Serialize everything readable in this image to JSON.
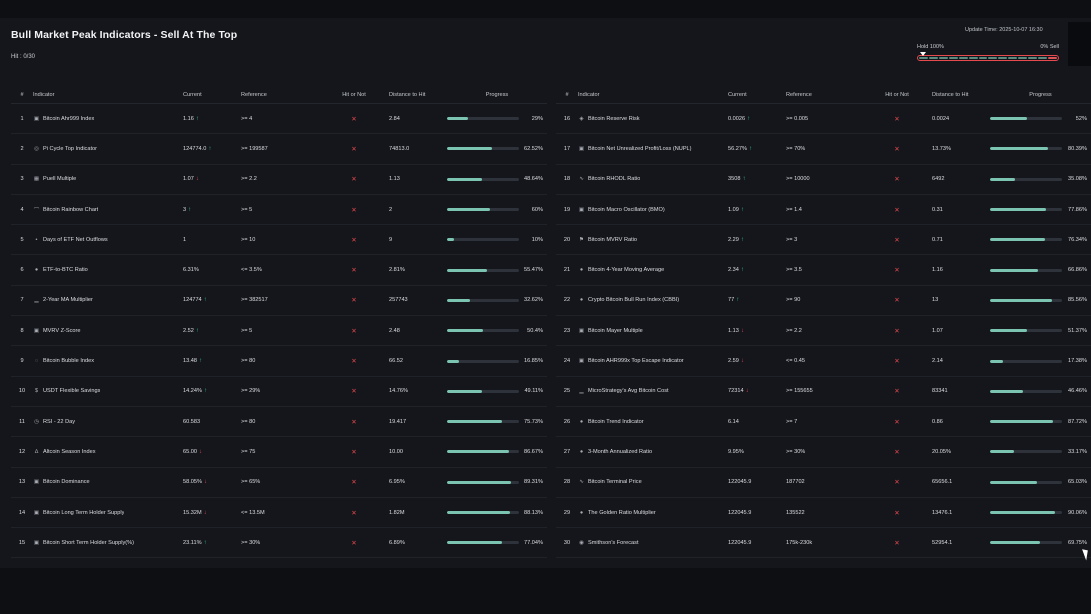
{
  "header": {
    "title": "Bull Market Peak Indicators - Sell At The Top",
    "hit_count": "Hit : 0/30",
    "update_time": "Update Time: 2025-10-07 16:30",
    "hold_label": "Hold 100%",
    "sell_label": "0% Sell",
    "hold_fraction": 1.0
  },
  "columns": {
    "num": "#",
    "indicator": "Indicator",
    "current": "Current",
    "reference": "Reference",
    "hit": "Hit or Not",
    "distance": "Distance to Hit",
    "progress": "Progress"
  },
  "colors": {
    "accent": "#7bc4b2",
    "up": "#34c38f",
    "down": "#e5484d"
  },
  "left_rows": [
    {
      "num": "1",
      "icon": "square-icon",
      "name": "Bitcoin Ahr999 Index",
      "current": "1.16",
      "trend": "up",
      "reference": ">= 4",
      "hit": "✕",
      "distance": "2.84",
      "progress": 0.29,
      "pct": "29%"
    },
    {
      "num": "2",
      "icon": "ring-icon",
      "name": "Pi Cycle Top Indicator",
      "current": "124774.0",
      "trend": "up",
      "reference": ">= 199587",
      "hit": "✕",
      "distance": "74813.0",
      "progress": 0.6252,
      "pct": "62.52%"
    },
    {
      "num": "3",
      "icon": "grid-icon",
      "name": "Puell Multiple",
      "current": "1.07",
      "trend": "down",
      "reference": ">= 2.2",
      "hit": "✕",
      "distance": "1.13",
      "progress": 0.4864,
      "pct": "48.64%"
    },
    {
      "num": "4",
      "icon": "rainbow-icon",
      "name": "Bitcoin Rainbow Chart",
      "current": "3",
      "trend": "up",
      "reference": ">= 5",
      "hit": "✕",
      "distance": "2",
      "progress": 0.6,
      "pct": "60%"
    },
    {
      "num": "5",
      "icon": "dot-icon",
      "name": "Days of ETF Net Outflows",
      "current": "1",
      "trend": "",
      "reference": ">= 10",
      "hit": "✕",
      "distance": "9",
      "progress": 0.1,
      "pct": "10%"
    },
    {
      "num": "6",
      "icon": "circle-icon",
      "name": "ETF-to-BTC Ratio",
      "current": "6.31%",
      "trend": "",
      "reference": "<= 3.5%",
      "hit": "✕",
      "distance": "2.81%",
      "progress": 0.5547,
      "pct": "55.47%"
    },
    {
      "num": "7",
      "icon": "chart-icon",
      "name": "2-Year MA Multiplier",
      "current": "124774",
      "trend": "up",
      "reference": ">= 382517",
      "hit": "✕",
      "distance": "257743",
      "progress": 0.3262,
      "pct": "32.62%"
    },
    {
      "num": "8",
      "icon": "square-icon",
      "name": "MVRV Z-Score",
      "current": "2.52",
      "trend": "up",
      "reference": ">= 5",
      "hit": "✕",
      "distance": "2.48",
      "progress": 0.504,
      "pct": "50.4%"
    },
    {
      "num": "9",
      "icon": "bubble-icon",
      "name": "Bitcoin Bubble Index",
      "current": "13.48",
      "trend": "up",
      "reference": ">= 80",
      "hit": "✕",
      "distance": "66.52",
      "progress": 0.1685,
      "pct": "16.85%"
    },
    {
      "num": "10",
      "icon": "dollar-icon",
      "name": "USDT Flexible Savings",
      "current": "14.24%",
      "trend": "up",
      "reference": ">= 29%",
      "hit": "✕",
      "distance": "14.76%",
      "progress": 0.4911,
      "pct": "49.11%"
    },
    {
      "num": "11",
      "icon": "clock-icon",
      "name": "RSI - 22 Day",
      "current": "60.583",
      "trend": "",
      "reference": ">= 80",
      "hit": "✕",
      "distance": "19.417",
      "progress": 0.7573,
      "pct": "75.73%"
    },
    {
      "num": "12",
      "icon": "flame-icon",
      "name": "Altcoin Season Index",
      "current": "65.00",
      "trend": "down",
      "reference": ">= 75",
      "hit": "✕",
      "distance": "10.00",
      "progress": 0.8667,
      "pct": "86.67%"
    },
    {
      "num": "13",
      "icon": "square-icon",
      "name": "Bitcoin Dominance",
      "current": "58.05%",
      "trend": "down",
      "reference": ">= 65%",
      "hit": "✕",
      "distance": "6.95%",
      "progress": 0.8931,
      "pct": "89.31%"
    },
    {
      "num": "14",
      "icon": "square-icon",
      "name": "Bitcoin Long Term Holder Supply",
      "current": "15.32M",
      "trend": "down",
      "reference": "<= 13.5M",
      "hit": "✕",
      "distance": "1.82M",
      "progress": 0.8813,
      "pct": "88.13%"
    },
    {
      "num": "15",
      "icon": "square-icon",
      "name": "Bitcoin Short Term Holder Supply(%)",
      "current": "23.11%",
      "trend": "up",
      "reference": ">= 30%",
      "hit": "✕",
      "distance": "6.89%",
      "progress": 0.7704,
      "pct": "77.04%"
    }
  ],
  "right_rows": [
    {
      "num": "16",
      "icon": "shield-icon",
      "name": "Bitcoin Reserve Risk",
      "current": "0.0026",
      "trend": "up",
      "reference": ">= 0.005",
      "hit": "✕",
      "distance": "0.0024",
      "progress": 0.52,
      "pct": "52%"
    },
    {
      "num": "17",
      "icon": "square-icon",
      "name": "Bitcoin Net Unrealized Profit/Loss (NUPL)",
      "current": "56.27%",
      "trend": "up",
      "reference": ">= 70%",
      "hit": "✕",
      "distance": "13.73%",
      "progress": 0.8039,
      "pct": "80.39%"
    },
    {
      "num": "18",
      "icon": "wave-icon",
      "name": "Bitcoin RHODL Ratio",
      "current": "3508",
      "trend": "up",
      "reference": ">= 10000",
      "hit": "✕",
      "distance": "6492",
      "progress": 0.3508,
      "pct": "35.08%"
    },
    {
      "num": "19",
      "icon": "square-icon",
      "name": "Bitcoin Macro Oscillator (BMO)",
      "current": "1.09",
      "trend": "up",
      "reference": ">= 1.4",
      "hit": "✕",
      "distance": "0.31",
      "progress": 0.7786,
      "pct": "77.86%"
    },
    {
      "num": "20",
      "icon": "flag-icon",
      "name": "Bitcoin MVRV Ratio",
      "current": "2.29",
      "trend": "up",
      "reference": ">= 3",
      "hit": "✕",
      "distance": "0.71",
      "progress": 0.7634,
      "pct": "76.34%"
    },
    {
      "num": "21",
      "icon": "circle-icon",
      "name": "Bitcoin 4-Year Moving Average",
      "current": "2.34",
      "trend": "up",
      "reference": ">= 3.5",
      "hit": "✕",
      "distance": "1.16",
      "progress": 0.6686,
      "pct": "66.86%"
    },
    {
      "num": "22",
      "icon": "circle-icon",
      "name": "Crypto Bitcoin Bull Run Index (CBBI)",
      "current": "77",
      "trend": "up",
      "reference": ">= 90",
      "hit": "✕",
      "distance": "13",
      "progress": 0.8556,
      "pct": "85.56%"
    },
    {
      "num": "23",
      "icon": "square-icon",
      "name": "Bitcoin Mayer Multiple",
      "current": "1.13",
      "trend": "down",
      "reference": ">= 2.2",
      "hit": "✕",
      "distance": "1.07",
      "progress": 0.5137,
      "pct": "51.37%"
    },
    {
      "num": "24",
      "icon": "square-icon",
      "name": "Bitcoin AHR999x Top Escape Indicator",
      "current": "2.59",
      "trend": "down",
      "reference": "<= 0.45",
      "hit": "✕",
      "distance": "2.14",
      "progress": 0.1738,
      "pct": "17.38%"
    },
    {
      "num": "25",
      "icon": "chart-icon",
      "name": "MicroStrategy's Avg Bitcoin Cost",
      "current": "72314",
      "trend": "down",
      "reference": ">= 155655",
      "hit": "✕",
      "distance": "83341",
      "progress": 0.4646,
      "pct": "46.46%"
    },
    {
      "num": "26",
      "icon": "circle-icon",
      "name": "Bitcoin Trend Indicator",
      "current": "6.14",
      "trend": "",
      "reference": ">= 7",
      "hit": "✕",
      "distance": "0.86",
      "progress": 0.8772,
      "pct": "87.72%"
    },
    {
      "num": "27",
      "icon": "circle-icon",
      "name": "3-Month Annualized Ratio",
      "current": "9.95%",
      "trend": "",
      "reference": ">= 30%",
      "hit": "✕",
      "distance": "20.05%",
      "progress": 0.3317,
      "pct": "33.17%"
    },
    {
      "num": "28",
      "icon": "wave-icon",
      "name": "Bitcoin Terminal Price",
      "current": "122045.9",
      "trend": "",
      "reference": "187702",
      "hit": "✕",
      "distance": "65656.1",
      "progress": 0.6503,
      "pct": "65.03%"
    },
    {
      "num": "29",
      "icon": "circle-icon",
      "name": "The Golden Ratio Multiplier",
      "current": "122045.9",
      "trend": "",
      "reference": "135522",
      "hit": "✕",
      "distance": "13476.1",
      "progress": 0.9006,
      "pct": "90.06%"
    },
    {
      "num": "30",
      "icon": "coin-icon",
      "name": "Smithson's Forecast",
      "current": "122045.9",
      "trend": "",
      "reference": "175k-230k",
      "hit": "✕",
      "distance": "52954.1",
      "progress": 0.6975,
      "pct": "69.75%"
    }
  ]
}
